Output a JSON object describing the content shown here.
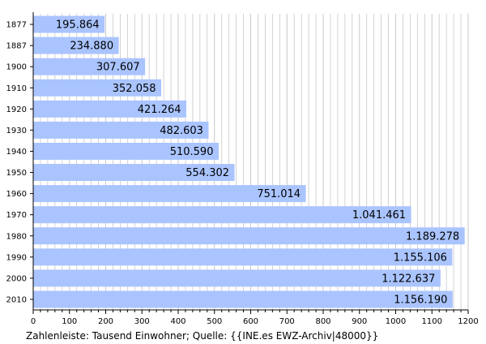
{
  "chart_data": {
    "type": "bar",
    "orientation": "horizontal",
    "categories": [
      "1877",
      "1887",
      "1900",
      "1910",
      "1920",
      "1930",
      "1940",
      "1950",
      "1960",
      "1970",
      "1980",
      "1990",
      "2000",
      "2010"
    ],
    "values": [
      195.864,
      234.88,
      307.607,
      352.058,
      421.264,
      482.603,
      510.59,
      554.302,
      751.014,
      1041.461,
      1189.278,
      1155.106,
      1122.637,
      1156.19
    ],
    "value_labels": [
      "195.864",
      "234.880",
      "307.607",
      "352.058",
      "421.264",
      "482.603",
      "510.590",
      "554.302",
      "751.014",
      "1.041.461",
      "1.189.278",
      "1.155.106",
      "1.122.637",
      "1.156.190"
    ],
    "xlim": [
      0,
      1200
    ],
    "x_ticks": [
      "0",
      "100",
      "200",
      "300",
      "400",
      "500",
      "600",
      "700",
      "800",
      "900",
      "1000",
      "1100",
      "1200"
    ],
    "grid": true,
    "caption": "Zahlenleiste: Tausend Einwohner; Quelle: {{INE.es EWZ-Archiv|48000}}",
    "colors": {
      "bar": "#aac4ff",
      "grid": "#c8c8c8",
      "axis": "#000000"
    }
  }
}
